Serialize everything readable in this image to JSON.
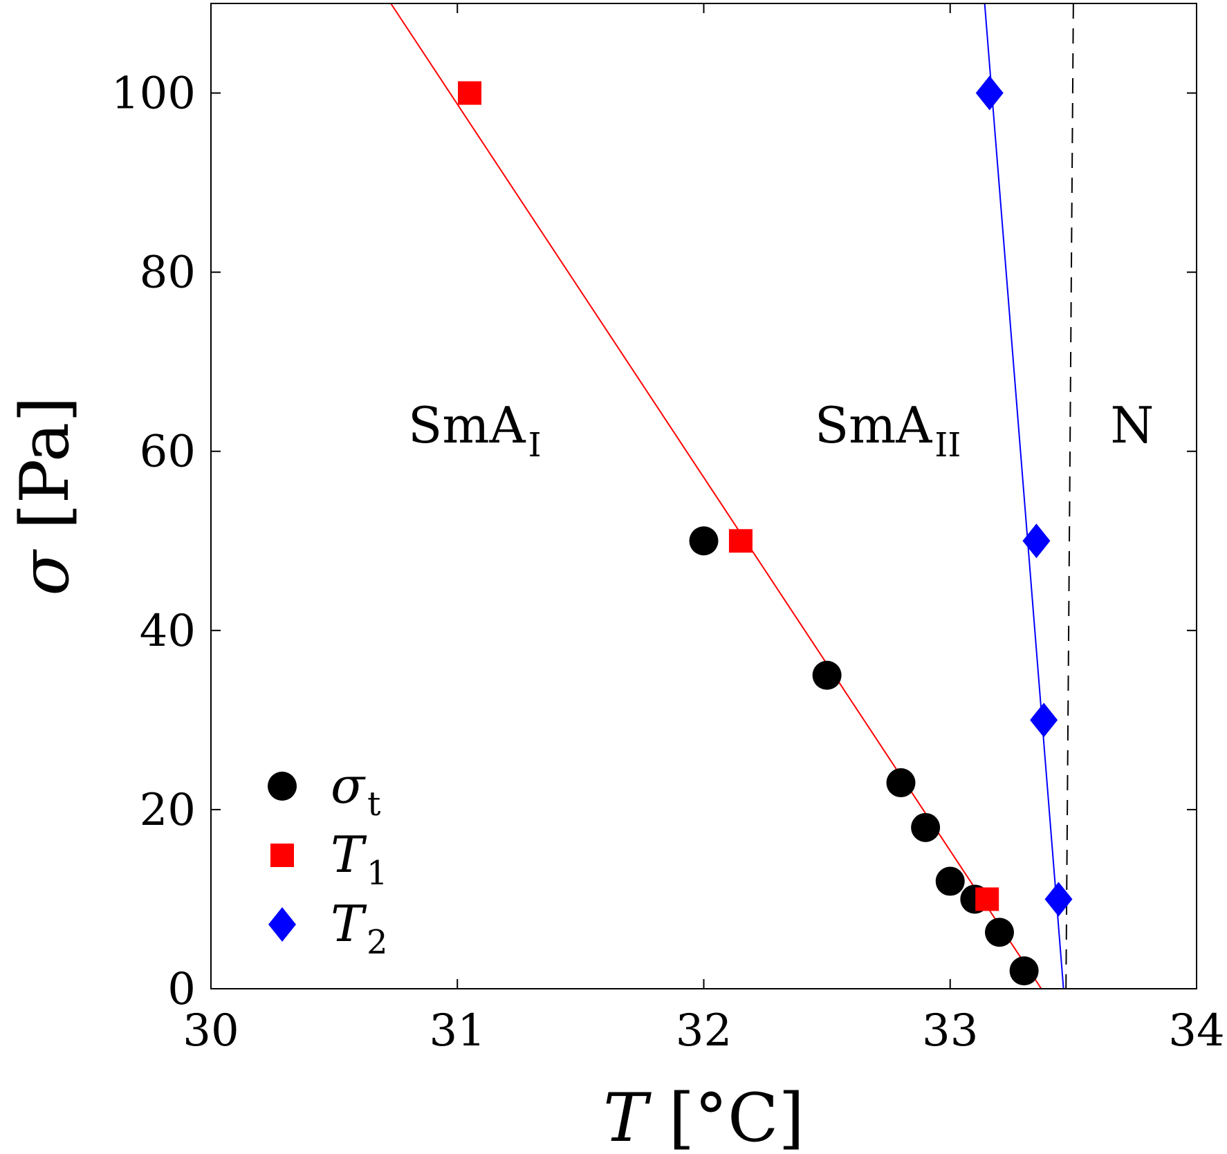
{
  "chart_data": {
    "type": "scatter",
    "xlabel": {
      "symbol": "T",
      "unit": "°C"
    },
    "ylabel": {
      "symbol": "σ",
      "unit": "Pa"
    },
    "xlim": [
      30,
      34
    ],
    "ylim": [
      0,
      110
    ],
    "xticks": [
      30,
      31,
      32,
      33,
      34
    ],
    "yticks": [
      0,
      20,
      40,
      60,
      80,
      100
    ],
    "grid": false,
    "legend_position": "bottom-left",
    "series": [
      {
        "name": "σ_t",
        "label_symbol": "σ",
        "label_sub": "t",
        "marker": "circle",
        "color": "#000000",
        "points": [
          [
            32.0,
            50
          ],
          [
            32.5,
            35
          ],
          [
            32.8,
            23
          ],
          [
            32.9,
            18
          ],
          [
            33.0,
            12
          ],
          [
            33.1,
            10
          ],
          [
            33.2,
            6.3
          ],
          [
            33.3,
            2
          ]
        ]
      },
      {
        "name": "T_1",
        "label_symbol": "T",
        "label_sub": "1",
        "marker": "square",
        "color": "#ff0000",
        "points": [
          [
            31.05,
            100
          ],
          [
            32.15,
            50
          ],
          [
            33.15,
            10
          ]
        ],
        "fit_line": [
          [
            30.73,
            110
          ],
          [
            33.37,
            0
          ]
        ]
      },
      {
        "name": "T_2",
        "label_symbol": "T",
        "label_sub": "2",
        "marker": "diamond",
        "color": "#0000ff",
        "points": [
          [
            33.16,
            100
          ],
          [
            33.35,
            50
          ],
          [
            33.38,
            30
          ],
          [
            33.44,
            10
          ]
        ],
        "fit_line": [
          [
            33.14,
            110
          ],
          [
            33.46,
            0
          ]
        ]
      }
    ],
    "phase_boundary": {
      "style": "dashed",
      "color": "#000000",
      "points": [
        [
          33.5,
          110
        ],
        [
          33.47,
          0
        ]
      ]
    },
    "regions": [
      {
        "text": "SmA",
        "sub": "I",
        "x": 30.8,
        "y": 61
      },
      {
        "text": "SmA",
        "sub": "II",
        "x": 32.45,
        "y": 61
      },
      {
        "text": "N",
        "sub": "",
        "x": 33.65,
        "y": 61
      }
    ]
  }
}
